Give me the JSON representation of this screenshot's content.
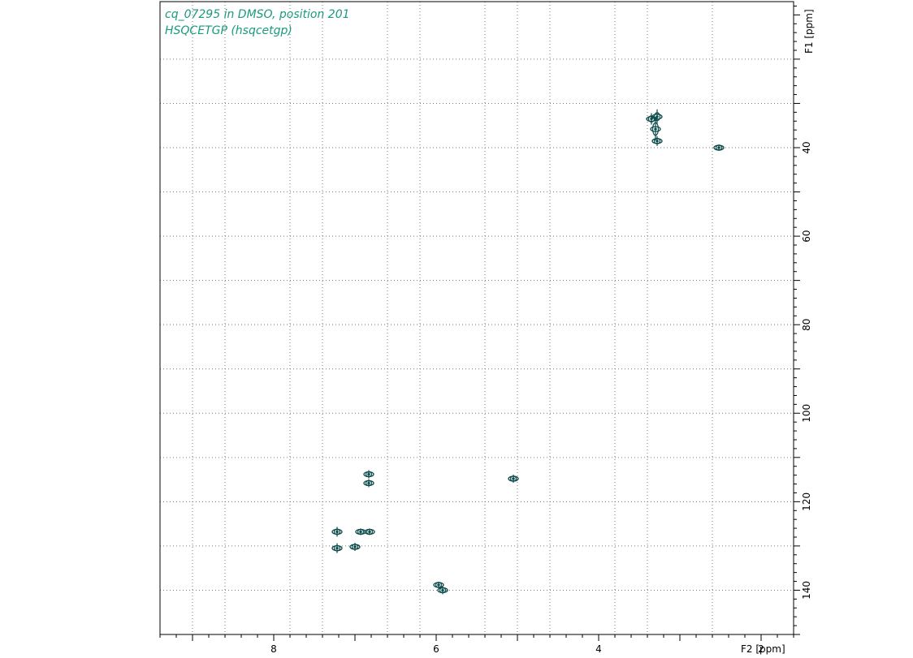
{
  "chart_data": {
    "type": "scatter",
    "title_lines": [
      "cq_07295 in DMSO, position 201",
      "HSQCETGP (hsqcetgp)"
    ],
    "xlabel": "F2 [ppm]",
    "ylabel": "F1 [ppm]",
    "x_reversed": true,
    "y_reversed": true,
    "xlim": [
      9.4,
      1.6
    ],
    "ylim": [
      7,
      150
    ],
    "x_ticks": [
      8,
      6,
      4,
      2
    ],
    "y_ticks": [
      40,
      60,
      80,
      100,
      120,
      140
    ],
    "x_tick_labels": [
      "8",
      "6",
      "4",
      "2"
    ],
    "y_tick_labels": [
      "40",
      "60",
      "80",
      "100",
      "120",
      "140"
    ],
    "grid": true,
    "grid_x": [
      9.0,
      8.6,
      7.8,
      7.4,
      6.6,
      6.2,
      5.4,
      5.0,
      4.6,
      3.8,
      3.4,
      2.6
    ],
    "grid_y": [
      20,
      30,
      40,
      50,
      60,
      70,
      80,
      90,
      100,
      110,
      120,
      130,
      140
    ],
    "contour_color": "#0d4a4a",
    "peaks": [
      {
        "x": 3.35,
        "y": 33.5,
        "h": 7
      },
      {
        "x": 3.28,
        "y": 33.0,
        "h": 9
      },
      {
        "x": 3.28,
        "y": 38.5,
        "h": 6
      },
      {
        "x": 3.3,
        "y": 35.8,
        "h": 14
      },
      {
        "x": 2.52,
        "y": 40.0,
        "h": 4
      },
      {
        "x": 6.83,
        "y": 113.8,
        "h": 5
      },
      {
        "x": 6.83,
        "y": 115.8,
        "h": 5
      },
      {
        "x": 5.05,
        "y": 114.8,
        "h": 5
      },
      {
        "x": 7.22,
        "y": 126.8,
        "h": 6
      },
      {
        "x": 7.22,
        "y": 130.5,
        "h": 6
      },
      {
        "x": 6.93,
        "y": 126.8,
        "h": 4
      },
      {
        "x": 6.82,
        "y": 126.8,
        "h": 4
      },
      {
        "x": 7.0,
        "y": 130.2,
        "h": 5
      },
      {
        "x": 5.97,
        "y": 138.8,
        "h": 4
      },
      {
        "x": 5.92,
        "y": 140.0,
        "h": 5
      }
    ]
  }
}
